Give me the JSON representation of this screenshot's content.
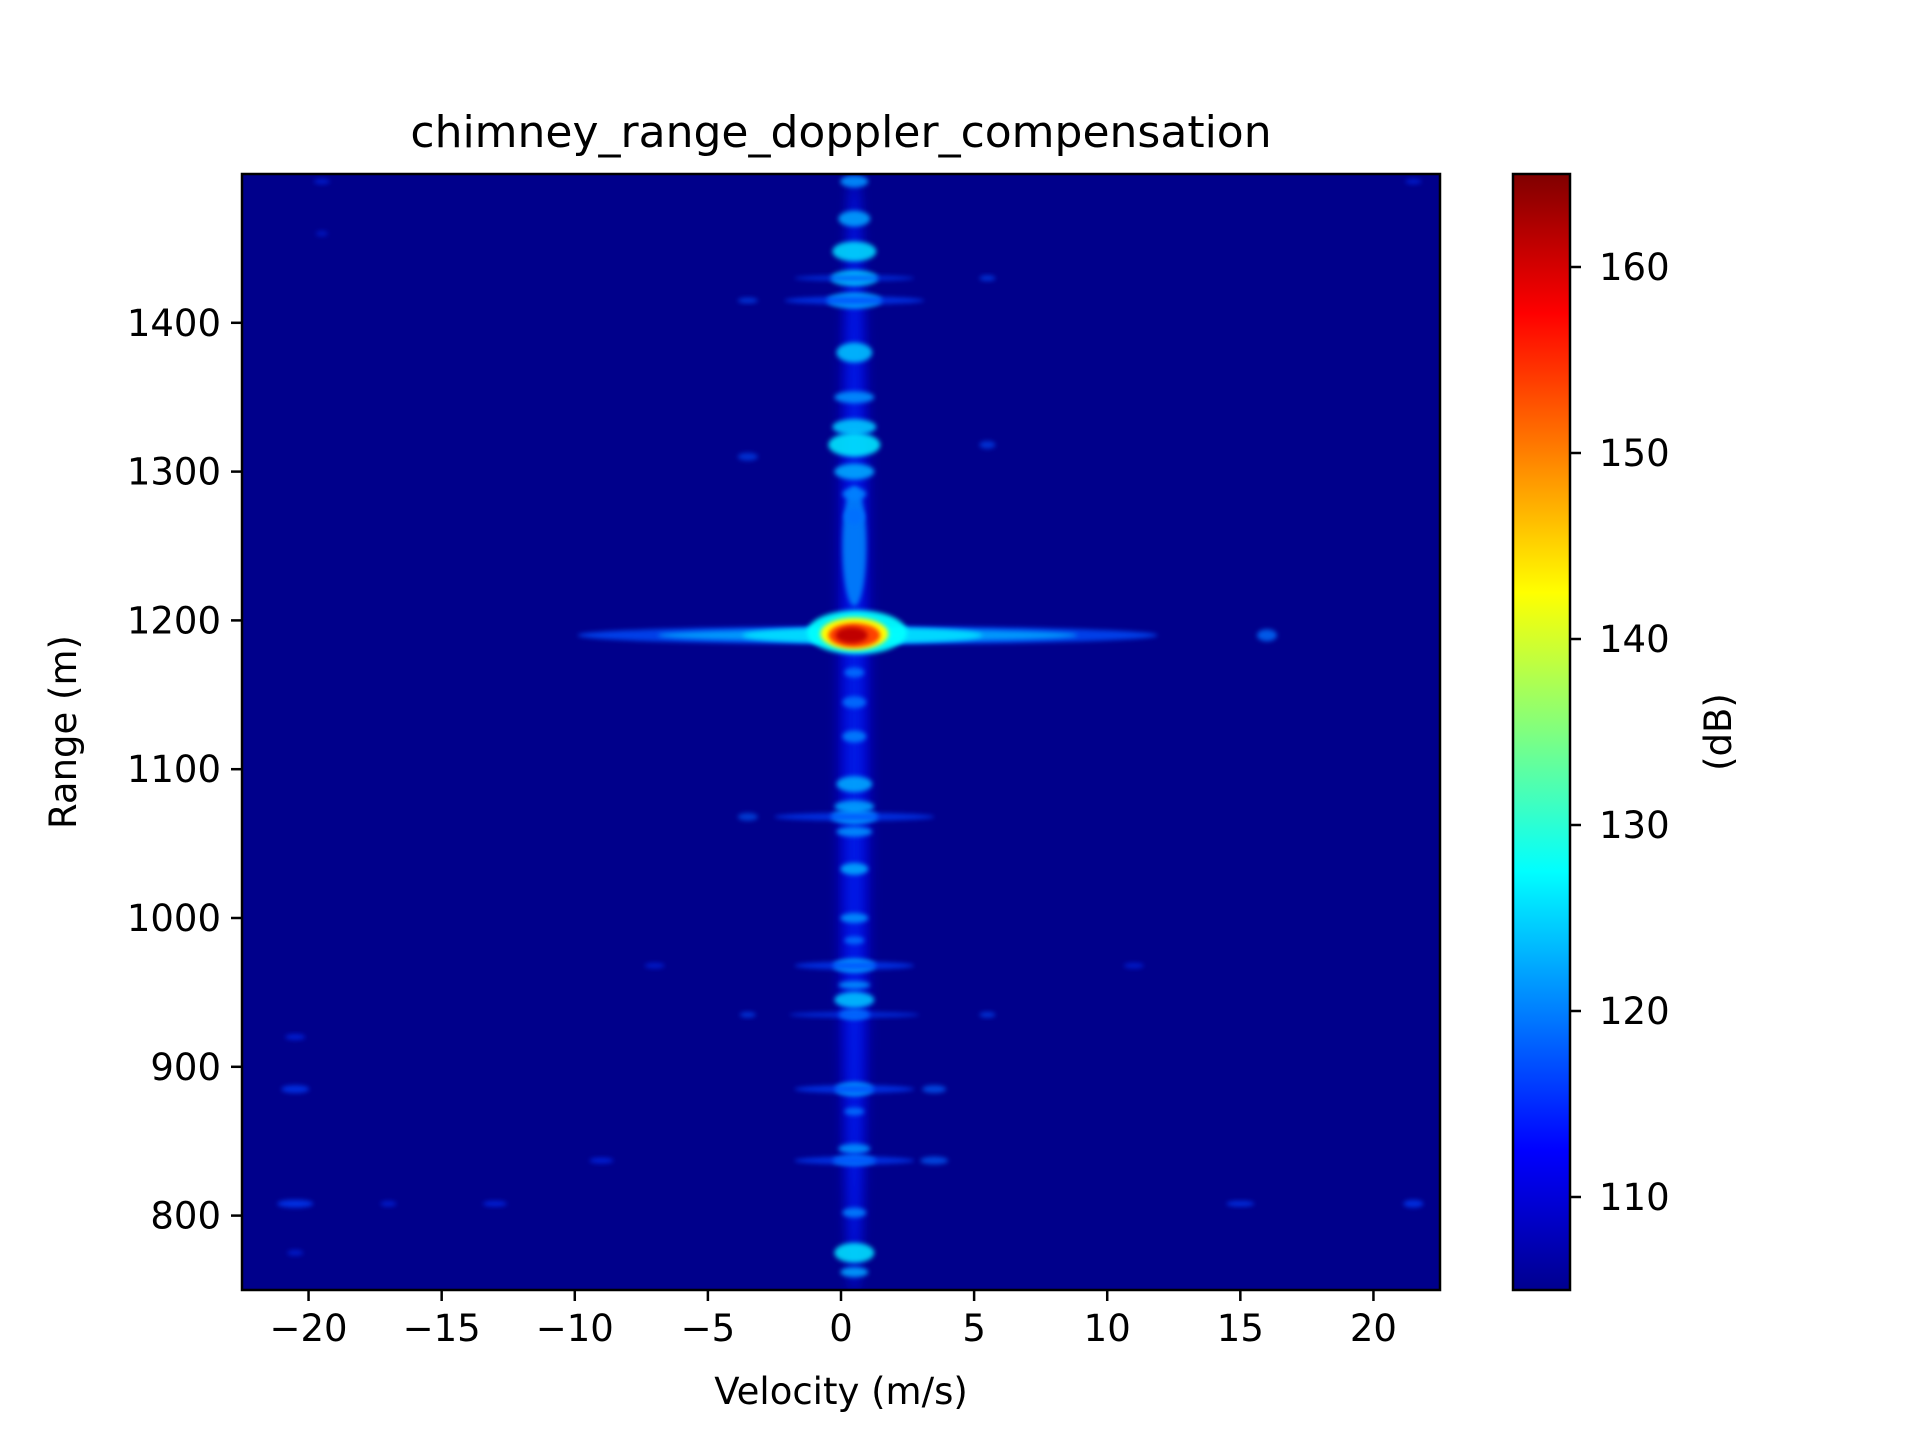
{
  "chart_data": {
    "type": "heatmap",
    "title": "chimney_range_doppler_compensation",
    "xlabel": "Velocity (m/s)",
    "ylabel": "Range (m)",
    "xlim": [
      -22.5,
      22.5
    ],
    "ylim": [
      750,
      1500
    ],
    "xticks": [
      -20,
      -15,
      -10,
      -5,
      0,
      5,
      10,
      15,
      20
    ],
    "xtick_labels": [
      "−20",
      "−15",
      "−10",
      "−5",
      "0",
      "5",
      "10",
      "15",
      "20"
    ],
    "yticks": [
      800,
      900,
      1000,
      1100,
      1200,
      1300,
      1400
    ],
    "ytick_labels": [
      "800",
      "900",
      "1000",
      "1100",
      "1200",
      "1300",
      "1400"
    ],
    "colormap": "jet",
    "background_color": "#00008b",
    "colorbar": {
      "label": "(dB)",
      "range": [
        105,
        165
      ],
      "ticks": [
        110,
        120,
        130,
        140,
        150,
        160
      ],
      "tick_labels": [
        "110",
        "120",
        "130",
        "140",
        "150",
        "160"
      ]
    },
    "features": [
      {
        "velocity": 0.5,
        "range": 1190,
        "peak_db": 165
      },
      {
        "velocity": 0.5,
        "range_span": [
          755,
          1500
        ],
        "typical_db": 120
      },
      {
        "velocity_span": [
          -7,
          9
        ],
        "range": 1190,
        "typical_db": 122
      }
    ]
  }
}
